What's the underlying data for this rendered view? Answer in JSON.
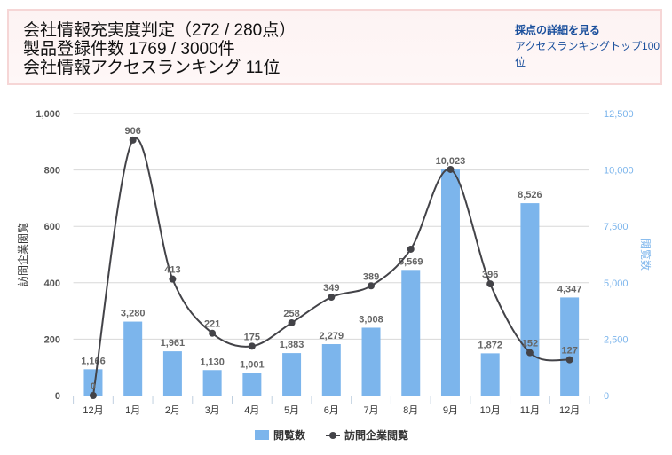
{
  "header": {
    "line1": "会社情報充実度判定（272 / 280点）",
    "line2": "製品登録件数 1769 / 3000件",
    "line3": "会社情報アクセスランキング 11位",
    "link_detail": "採点の詳細を見る",
    "link_ranking": "アクセスランキングトップ100位"
  },
  "chart_data": {
    "type": "bar+line",
    "categories": [
      "12月",
      "1月",
      "2月",
      "3月",
      "4月",
      "5月",
      "6月",
      "7月",
      "8月",
      "9月",
      "10月",
      "11月",
      "12月"
    ],
    "series": [
      {
        "name": "閲覧数",
        "type": "bar",
        "axis": "right",
        "color": "#7cb5ec",
        "values": [
          1166,
          3280,
          1961,
          1130,
          1001,
          1883,
          2279,
          3008,
          5569,
          10023,
          1872,
          8526,
          4347
        ]
      },
      {
        "name": "訪問企業閲覧",
        "type": "line",
        "axis": "left",
        "color": "#434348",
        "values": [
          0,
          906,
          413,
          221,
          175,
          258,
          349,
          389,
          519,
          802,
          396,
          152,
          127
        ]
      }
    ],
    "ylabel_left": "訪問企業閲覧",
    "ylabel_right": "閲覧数",
    "ylim_left": [
      0,
      1000
    ],
    "yticks_left": [
      "0",
      "200",
      "400",
      "600",
      "800",
      "1,000"
    ],
    "ylim_right": [
      0,
      12500
    ],
    "yticks_right": [
      "0",
      "2,500",
      "5,000",
      "7,500",
      "10,000",
      "12,500"
    ],
    "grid": true,
    "legend": "bottom-center",
    "bar_labels": [
      "1,166",
      "3,280",
      "1,961",
      "1,130",
      "1,001",
      "1,883",
      "2,279",
      "3,008",
      "5,569",
      "10,023",
      "1,872",
      "8,526",
      "4,347"
    ],
    "line_labels": [
      "0",
      "906",
      "413",
      "221",
      "175",
      "258",
      "349",
      "389",
      "",
      "",
      "396",
      "152",
      "127"
    ]
  }
}
